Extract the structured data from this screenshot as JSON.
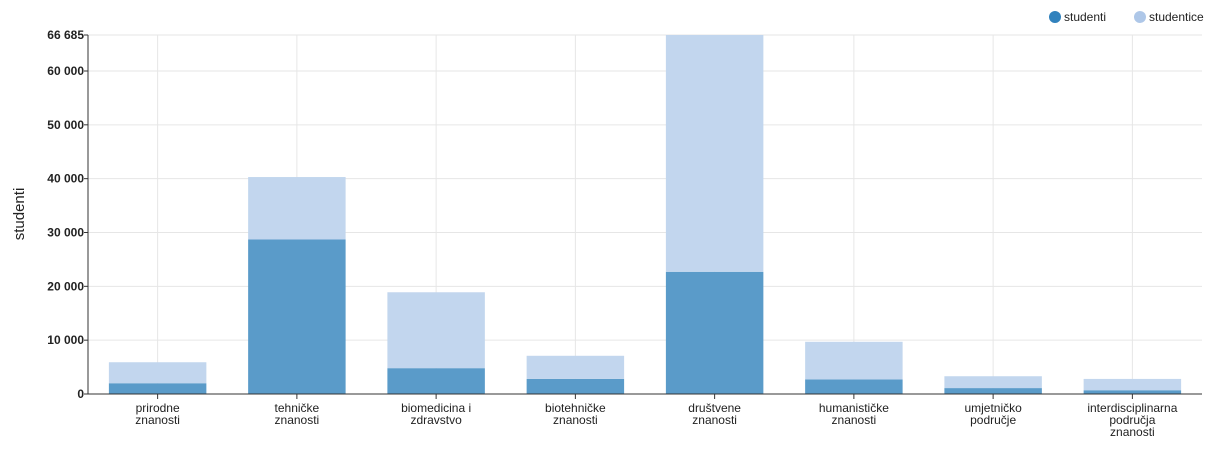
{
  "chart_data": {
    "type": "bar",
    "stacked": true,
    "categories": [
      [
        "prirodne",
        "znanosti"
      ],
      [
        "tehničke",
        "znanosti"
      ],
      [
        "biomedicina i",
        "zdravstvo"
      ],
      [
        "biotehničke",
        "znanosti"
      ],
      [
        "društvene",
        "znanosti"
      ],
      [
        "humanističke",
        "znanosti"
      ],
      [
        "umjetničko",
        "područje"
      ],
      [
        "interdisciplinarna",
        "područja",
        "znanosti"
      ]
    ],
    "series": [
      {
        "name": "studenti",
        "color": "#3182bd",
        "values": [
          2000,
          28700,
          4800,
          2800,
          22700,
          2700,
          1100,
          700
        ]
      },
      {
        "name": "studentice",
        "color": "#aec7e8",
        "values": [
          3900,
          11600,
          14100,
          4300,
          43985,
          7000,
          2200,
          2100
        ]
      }
    ],
    "ylabel": "studenti",
    "ylim": [
      0,
      66685
    ],
    "yticks": [
      0,
      10000,
      20000,
      30000,
      40000,
      50000,
      60000,
      66685
    ],
    "ytick_labels": [
      "0",
      "10 000",
      "20 000",
      "30 000",
      "40 000",
      "50 000",
      "60 000",
      "66 685"
    ],
    "grid": true,
    "legend": "top-right"
  }
}
